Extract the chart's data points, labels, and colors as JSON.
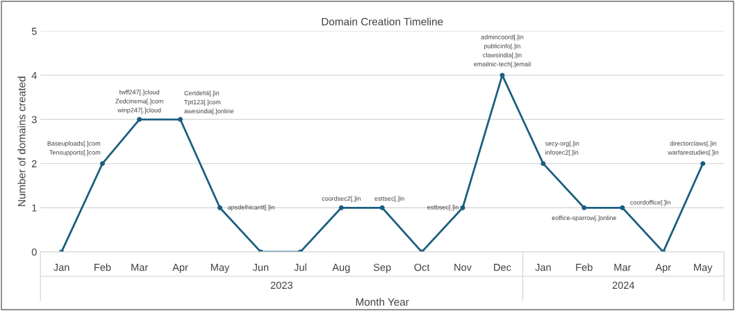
{
  "chart_data": {
    "type": "line",
    "title": "Domain Creation Timeline",
    "xlabel": "Month Year",
    "ylabel": "Number of domains created",
    "x": [
      "2023-01",
      "2023-02",
      "2023-03",
      "2023-04",
      "2023-05",
      "2023-06",
      "2023-07",
      "2023-08",
      "2023-09",
      "2023-10",
      "2023-11",
      "2023-12",
      "2024-01",
      "2024-02",
      "2024-03",
      "2024-04",
      "2024-05"
    ],
    "xticks": [
      {
        "value": "2023-01",
        "label": "Jan"
      },
      {
        "value": "2023-02",
        "label": "Feb"
      },
      {
        "value": "2023-03",
        "label": "Mar"
      },
      {
        "value": "2023-04",
        "label": "Apr"
      },
      {
        "value": "2023-05",
        "label": "May"
      },
      {
        "value": "2023-06",
        "label": "Jun"
      },
      {
        "value": "2023-07",
        "label": "Jul"
      },
      {
        "value": "2023-08",
        "label": "Aug"
      },
      {
        "value": "2023-09",
        "label": "Sep"
      },
      {
        "value": "2023-10",
        "label": "Oct"
      },
      {
        "value": "2023-11",
        "label": "Nov"
      },
      {
        "value": "2023-12",
        "label": "Dec"
      },
      {
        "value": "2024-01",
        "label": "Jan"
      },
      {
        "value": "2024-02",
        "label": "Feb"
      },
      {
        "value": "2024-03",
        "label": "Mar"
      },
      {
        "value": "2024-04",
        "label": "Apr"
      },
      {
        "value": "2024-05",
        "label": "May"
      }
    ],
    "series": [
      {
        "color": "#1b5e7f",
        "values": [
          0,
          2,
          3,
          3,
          1,
          0,
          0,
          1,
          1,
          0,
          1,
          4,
          2,
          1,
          1,
          0,
          2
        ]
      }
    ],
    "xlim": [
      "2022-12-16",
      "2024-05-17"
    ],
    "ylim": [
      0,
      5
    ],
    "yticks": [
      0,
      1,
      2,
      3,
      4,
      5
    ],
    "grid": "y",
    "marker": "circle",
    "line_style": "solid",
    "annotations": [
      {
        "text": "Baseuploads[.]com\nTensupports[.]com",
        "x": "2023-02",
        "y": 2
      },
      {
        "text": "twff247[.]cloud\nZedcinema[.]com\nwinp247[.]cloud",
        "x": "2023-03",
        "y": 3
      },
      {
        "text": "Certdehli[.]in\nTpt123[.]com\nawesindia[.]online",
        "x": "2023-04",
        "y": 3
      },
      {
        "text": "apsdelhicantt[.]in",
        "x": "2023-05",
        "y": 1
      },
      {
        "text": "coordsec2[.]in",
        "x": "2023-08",
        "y": 1
      },
      {
        "text": "esttsec[.]in",
        "x": "2023-09",
        "y": 1
      },
      {
        "text": "estbsec[.]in",
        "x": "2023-11",
        "y": 1
      },
      {
        "text": "admincoord[.]in\npublicinfo[.]in\nclawsindia[.]in\nemailnic-tech[.]email",
        "x": "2023-12",
        "y": 4
      },
      {
        "text": "secy-org[.]in\ninfosec2[.]in",
        "x": "2024-01",
        "y": 2
      },
      {
        "text": "eoffice-sparrow[.]online",
        "x": "2024-02",
        "y": 1
      },
      {
        "text": "coordoffice[.]in",
        "x": "2024-03",
        "y": 1
      },
      {
        "text": "directorclaws[.]in\nwarfarestudies[.]in",
        "x": "2024-05",
        "y": 2
      },
      "2023",
      "2024"
    ]
  }
}
